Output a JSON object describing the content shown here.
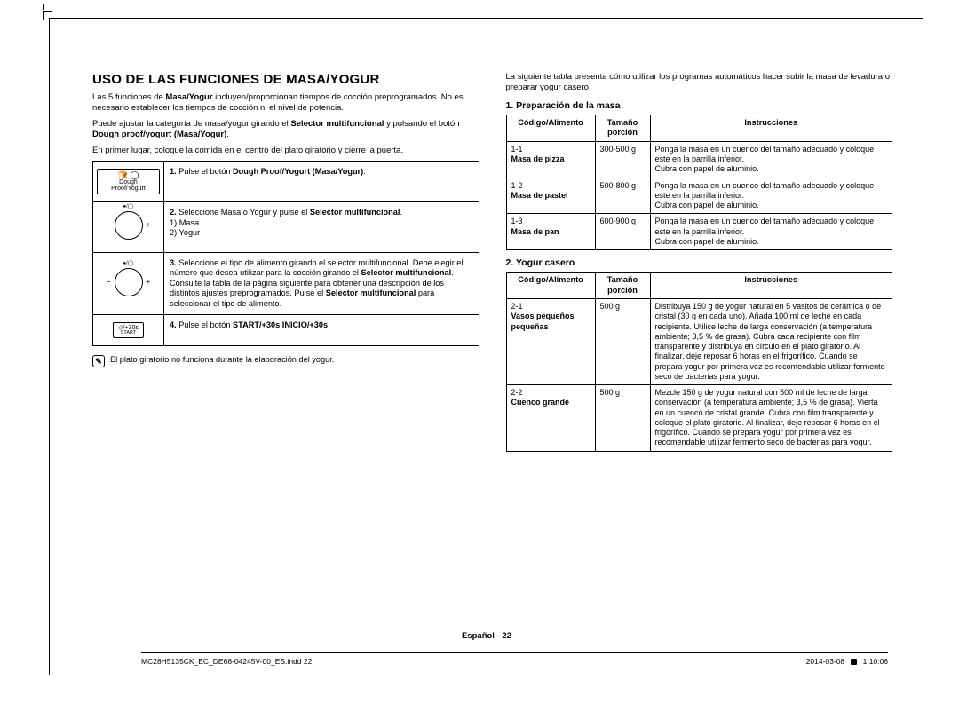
{
  "heading": "USO DE LAS FUNCIONES DE MASA/YOGUR",
  "intro1a": "Las 5 funciones de ",
  "intro1b": "Masa/Yogur",
  "intro1c": " incluyen/proporcionan tiempos de cocción preprogramados. No es necesario establecer los tiempos de cocción ni el nivel de potencia.",
  "intro2a": "Puede ajustar la categoría de masa/yogur girando el ",
  "intro2b": "Selector multifuncional",
  "intro2c": " y pulsando el botón ",
  "intro2d": "Dough proof/yogurt (Masa/Yogur)",
  "intro2e": ".",
  "intro3": "En primer lugar, coloque la comida en el centro del plato giratorio y cierre la puerta.",
  "step1_icon_top": "🍞 ◯",
  "step1_icon_label": "Dough Proof/Yogurt",
  "step1a": "Pulse el botón ",
  "step1b": "Dough Proof/Yogurt (Masa/Yogur)",
  "step1c": ".",
  "step2a": "Seleccione Masa o Yogur y pulse el ",
  "step2b": "Selector multifuncional",
  "step2c": ".",
  "step2_l1": "1) Masa",
  "step2_l2": "2) Yogur",
  "step3a": "Seleccione el tipo de alimento girando el selector multifuncional. Debe elegir el número que desea utilizar para la cocción girando el ",
  "step3b": "Selector multifuncional",
  "step3c": ".",
  "step3d": "Consulte la tabla de la página siguiente para obtener una descripción de los distintos ajustes preprogramados. Pulse el ",
  "step3e": "Selector multifuncional",
  "step3f": " para seleccionar el tipo de alimento.",
  "step4a": "Pulse el botón ",
  "step4b": "START/+30s INICIO/+30s",
  "step4c": ".",
  "step4_icon_top": "◇/+30s",
  "step4_icon_bottom": "START",
  "note_text": "El plato giratorio no funciona durante la elaboración del yogur.",
  "right_intro": "La siguiente tabla presenta cómo utilizar los programas automáticos hacer subir la masa de levadura o preparar yogur casero.",
  "sec1_title": "1. Preparación de la masa",
  "th_code": "Código/Alimento",
  "th_size": "Tamaño porción",
  "th_instr": "Instrucciones",
  "t1r1_code": "1-1",
  "t1r1_name": "Masa de pizza",
  "t1r1_size": "300-500 g",
  "t1r1_instr": "Ponga la masa en un cuenco del tamaño adecuado y coloque este en la parrilla inferior.\nCubra con papel de aluminio.",
  "t1r2_code": "1-2",
  "t1r2_name": "Masa de pastel",
  "t1r2_size": "500-800 g",
  "t1r2_instr": "Ponga la masa en un cuenco del tamaño adecuado y coloque este en la parrilla inferior.\nCubra con papel de aluminio.",
  "t1r3_code": "1-3",
  "t1r3_name": "Masa de pan",
  "t1r3_size": "600-900 g",
  "t1r3_instr": "Ponga la masa en un cuenco del tamaño adecuado y coloque este en la parrilla inferior.\nCubra con papel de aluminio.",
  "sec2_title": "2. Yogur casero",
  "t2r1_code": "2-1",
  "t2r1_name": "Vasos pequeños pequeñas",
  "t2r1_size": "500 g",
  "t2r1_instr": "Distribuya 150 g de yogur natural en 5 vasitos de cerámica o de cristal (30 g en cada uno). Añada 100 ml de leche en cada recipiente. Utilice leche de larga conservación (a temperatura ambiente; 3,5 % de grasa). Cubra cada recipiente con film transparente y distribuya en círculo en el plato giratorio. Al finalizar, deje reposar 6 horas en el frigorífico. Cuando se prepara yogur por primera vez es recomendable utilizar fermento seco de bacterias para yogur.",
  "t2r2_code": "2-2",
  "t2r2_name": "Cuenco grande",
  "t2r2_size": "500 g",
  "t2r2_instr": "Mezcle 150 g de yogur natural con 500 ml de leche de larga conservación (a temperatura ambiente; 3,5 % de grasa). Vierta en un cuenco de cristal grande. Cubra con film transparente y coloque el plato giratorio. Al finalizar, deje reposar 6 horas en el frigorífico. Cuando se prepara yogur por primera vez es recomendable utilizar fermento seco de bacterias para yogur.",
  "footer_lang": "Español",
  "footer_page": "22",
  "foot_file": "MC28H5135CK_EC_DE68-04245V-00_ES.indd   22",
  "foot_date": "2014-03-08",
  "foot_time": "1:10:06"
}
